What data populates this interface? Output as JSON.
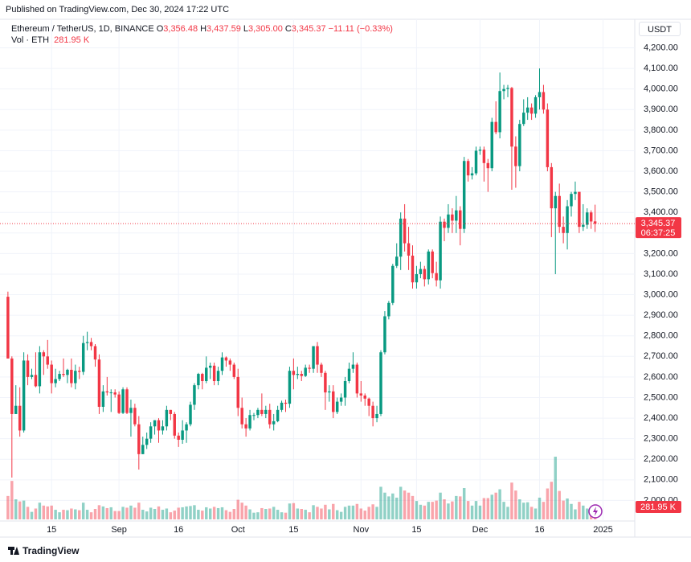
{
  "header": {
    "published": "Published on TradingView.com, Dec 30, 2024 17:22 UTC"
  },
  "legend": {
    "symbol": "Ethereum / TetherUS, 1D, BINANCE",
    "ohlc": [
      {
        "key": "O",
        "value": "3,356.48"
      },
      {
        "key": "H",
        "value": "3,437.59"
      },
      {
        "key": "L",
        "value": "3,305.00"
      },
      {
        "key": "C",
        "value": "3,345.37"
      }
    ],
    "change": "−11.11 (−0.33%)",
    "volume_name": "Vol · ETH",
    "volume_value": "281.95 K"
  },
  "footer": {
    "brand": "TradingView"
  },
  "chart_data": {
    "type": "candlestick",
    "unit": "USDT",
    "up_color": "#089981",
    "down_color": "#f23645",
    "last_price_label": "3,345.37",
    "countdown": "06:37:25",
    "last_volume_label": "281.95 K",
    "xlim": [
      "2024-08-02",
      "2025-01-09"
    ],
    "ylim": [
      1900,
      4245
    ],
    "grid": true,
    "yticks": [
      {
        "value": 2000,
        "label": "2,000.00"
      },
      {
        "value": 2100,
        "label": "2,100.00"
      },
      {
        "value": 2200,
        "label": "2,200.00"
      },
      {
        "value": 2300,
        "label": "2,300.00"
      },
      {
        "value": 2400,
        "label": "2,400.00"
      },
      {
        "value": 2500,
        "label": "2,500.00"
      },
      {
        "value": 2600,
        "label": "2,600.00"
      },
      {
        "value": 2700,
        "label": "2,700.00"
      },
      {
        "value": 2800,
        "label": "2,800.00"
      },
      {
        "value": 2900,
        "label": "2,900.00"
      },
      {
        "value": 3000,
        "label": "3,000.00"
      },
      {
        "value": 3100,
        "label": "3,100.00"
      },
      {
        "value": 3200,
        "label": "3,200.00"
      },
      {
        "value": 3300,
        "label": "3,300.00"
      },
      {
        "value": 3400,
        "label": "3,400.00"
      },
      {
        "value": 3500,
        "label": "3,500.00"
      },
      {
        "value": 3600,
        "label": "3,600.00"
      },
      {
        "value": 3700,
        "label": "3,700.00"
      },
      {
        "value": 3800,
        "label": "3,800.00"
      },
      {
        "value": 3900,
        "label": "3,900.00"
      },
      {
        "value": 4000,
        "label": "4,000.00"
      },
      {
        "value": 4100,
        "label": "4,100.00"
      },
      {
        "value": 4200,
        "label": "4,200.00"
      }
    ],
    "xticks": [
      {
        "value": "2024-08-15",
        "label": "15"
      },
      {
        "value": "2024-09-01",
        "label": "Sep"
      },
      {
        "value": "2024-09-16",
        "label": "16"
      },
      {
        "value": "2024-10-01",
        "label": "Oct"
      },
      {
        "value": "2024-10-15",
        "label": "15"
      },
      {
        "value": "2024-11-01",
        "label": "Nov"
      },
      {
        "value": "2024-11-15",
        "label": "15"
      },
      {
        "value": "2024-12-01",
        "label": "Dec"
      },
      {
        "value": "2024-12-16",
        "label": "16"
      },
      {
        "value": "2025-01-01",
        "label": "2025"
      }
    ],
    "x": [
      "2024-08-04",
      "2024-08-05",
      "2024-08-06",
      "2024-08-07",
      "2024-08-08",
      "2024-08-09",
      "2024-08-10",
      "2024-08-11",
      "2024-08-12",
      "2024-08-13",
      "2024-08-14",
      "2024-08-15",
      "2024-08-16",
      "2024-08-17",
      "2024-08-18",
      "2024-08-19",
      "2024-08-20",
      "2024-08-21",
      "2024-08-22",
      "2024-08-23",
      "2024-08-24",
      "2024-08-25",
      "2024-08-26",
      "2024-08-27",
      "2024-08-28",
      "2024-08-29",
      "2024-08-30",
      "2024-08-31",
      "2024-09-01",
      "2024-09-02",
      "2024-09-03",
      "2024-09-04",
      "2024-09-05",
      "2024-09-06",
      "2024-09-07",
      "2024-09-08",
      "2024-09-09",
      "2024-09-10",
      "2024-09-11",
      "2024-09-12",
      "2024-09-13",
      "2024-09-14",
      "2024-09-15",
      "2024-09-16",
      "2024-09-17",
      "2024-09-18",
      "2024-09-19",
      "2024-09-20",
      "2024-09-21",
      "2024-09-22",
      "2024-09-23",
      "2024-09-24",
      "2024-09-25",
      "2024-09-26",
      "2024-09-27",
      "2024-09-28",
      "2024-09-29",
      "2024-09-30",
      "2024-10-01",
      "2024-10-02",
      "2024-10-03",
      "2024-10-04",
      "2024-10-05",
      "2024-10-06",
      "2024-10-07",
      "2024-10-08",
      "2024-10-09",
      "2024-10-10",
      "2024-10-11",
      "2024-10-12",
      "2024-10-13",
      "2024-10-14",
      "2024-10-15",
      "2024-10-16",
      "2024-10-17",
      "2024-10-18",
      "2024-10-19",
      "2024-10-20",
      "2024-10-21",
      "2024-10-22",
      "2024-10-23",
      "2024-10-24",
      "2024-10-25",
      "2024-10-26",
      "2024-10-27",
      "2024-10-28",
      "2024-10-29",
      "2024-10-30",
      "2024-10-31",
      "2024-11-01",
      "2024-11-02",
      "2024-11-03",
      "2024-11-04",
      "2024-11-05",
      "2024-11-06",
      "2024-11-07",
      "2024-11-08",
      "2024-11-09",
      "2024-11-10",
      "2024-11-11",
      "2024-11-12",
      "2024-11-13",
      "2024-11-14",
      "2024-11-15",
      "2024-11-16",
      "2024-11-17",
      "2024-11-18",
      "2024-11-19",
      "2024-11-20",
      "2024-11-21",
      "2024-11-22",
      "2024-11-23",
      "2024-11-24",
      "2024-11-25",
      "2024-11-26",
      "2024-11-27",
      "2024-11-28",
      "2024-11-29",
      "2024-11-30",
      "2024-12-01",
      "2024-12-02",
      "2024-12-03",
      "2024-12-04",
      "2024-12-05",
      "2024-12-06",
      "2024-12-07",
      "2024-12-08",
      "2024-12-09",
      "2024-12-10",
      "2024-12-11",
      "2024-12-12",
      "2024-12-13",
      "2024-12-14",
      "2024-12-15",
      "2024-12-16",
      "2024-12-17",
      "2024-12-18",
      "2024-12-19",
      "2024-12-20",
      "2024-12-21",
      "2024-12-22",
      "2024-12-23",
      "2024-12-24",
      "2024-12-25",
      "2024-12-26",
      "2024-12-27",
      "2024-12-28",
      "2024-12-29",
      "2024-12-30"
    ],
    "open": [
      2990,
      2690,
      2420,
      2460,
      2340,
      2680,
      2600,
      2610,
      2555,
      2720,
      2700,
      2660,
      2570,
      2590,
      2615,
      2610,
      2635,
      2570,
      2630,
      2625,
      2765,
      2770,
      2750,
      2685,
      2455,
      2530,
      2525,
      2525,
      2515,
      2425,
      2540,
      2425,
      2450,
      2370,
      2225,
      2270,
      2300,
      2360,
      2390,
      2340,
      2360,
      2440,
      2420,
      2315,
      2295,
      2340,
      2370,
      2465,
      2560,
      2615,
      2580,
      2645,
      2655,
      2580,
      2630,
      2695,
      2680,
      2660,
      2600,
      2450,
      2370,
      2350,
      2415,
      2415,
      2440,
      2420,
      2440,
      2370,
      2385,
      2440,
      2475,
      2470,
      2630,
      2610,
      2615,
      2605,
      2645,
      2640,
      2750,
      2660,
      2620,
      2525,
      2530,
      2430,
      2480,
      2500,
      2580,
      2640,
      2660,
      2520,
      2510,
      2495,
      2460,
      2400,
      2420,
      2720,
      2895,
      2960,
      3140,
      3185,
      3370,
      3250,
      3190,
      3060,
      3100,
      3125,
      3075,
      3210,
      3105,
      3070,
      3355,
      3325,
      3390,
      3360,
      3410,
      3320,
      3650,
      3580,
      3590,
      3700,
      3705,
      3640,
      3615,
      3840,
      3790,
      3990,
      4000,
      4005,
      3720,
      3625,
      3830,
      3885,
      3910,
      3880,
      3960,
      3985,
      3900,
      3620,
      3420,
      3480,
      3330,
      3300,
      3430,
      3490,
      3500,
      3330,
      3340,
      3400,
      3356.48
    ],
    "high": [
      3015,
      2700,
      2560,
      2550,
      2720,
      2710,
      2640,
      2720,
      2750,
      2730,
      2780,
      2680,
      2640,
      2630,
      2690,
      2640,
      2690,
      2660,
      2650,
      2800,
      2820,
      2790,
      2760,
      2710,
      2560,
      2600,
      2540,
      2540,
      2530,
      2550,
      2550,
      2490,
      2470,
      2410,
      2310,
      2330,
      2380,
      2390,
      2400,
      2390,
      2460,
      2440,
      2430,
      2330,
      2390,
      2380,
      2480,
      2570,
      2620,
      2620,
      2700,
      2670,
      2670,
      2650,
      2720,
      2700,
      2690,
      2670,
      2640,
      2500,
      2400,
      2440,
      2425,
      2450,
      2520,
      2460,
      2470,
      2420,
      2460,
      2485,
      2490,
      2650,
      2690,
      2650,
      2630,
      2660,
      2660,
      2750,
      2770,
      2670,
      2630,
      2560,
      2560,
      2500,
      2520,
      2600,
      2670,
      2720,
      2670,
      2580,
      2520,
      2500,
      2480,
      2460,
      2730,
      2920,
      2970,
      3150,
      3250,
      3400,
      3440,
      3330,
      3240,
      3140,
      3160,
      3140,
      3220,
      3220,
      3160,
      3380,
      3370,
      3440,
      3420,
      3480,
      3430,
      3670,
      3660,
      3620,
      3720,
      3720,
      3720,
      3660,
      3860,
      3940,
      4080,
      4020,
      4020,
      4010,
      3770,
      3850,
      3950,
      3960,
      3930,
      3970,
      4100,
      4020,
      3930,
      3640,
      3500,
      3540,
      3380,
      3460,
      3500,
      3550,
      3500,
      3440,
      3420,
      3410,
      3437.59
    ],
    "low": [
      2690,
      2111,
      2420,
      2310,
      2330,
      2560,
      2590,
      2550,
      2520,
      2610,
      2640,
      2520,
      2550,
      2580,
      2600,
      2570,
      2550,
      2540,
      2590,
      2610,
      2730,
      2730,
      2650,
      2420,
      2430,
      2510,
      2430,
      2500,
      2420,
      2420,
      2420,
      2310,
      2360,
      2150,
      2225,
      2250,
      2280,
      2320,
      2280,
      2320,
      2340,
      2390,
      2300,
      2260,
      2275,
      2280,
      2360,
      2440,
      2540,
      2540,
      2570,
      2590,
      2560,
      2560,
      2610,
      2650,
      2630,
      2590,
      2410,
      2350,
      2310,
      2340,
      2390,
      2400,
      2410,
      2400,
      2350,
      2340,
      2380,
      2430,
      2430,
      2450,
      2540,
      2590,
      2580,
      2600,
      2620,
      2620,
      2620,
      2600,
      2440,
      2480,
      2400,
      2420,
      2460,
      2460,
      2570,
      2620,
      2500,
      2480,
      2460,
      2410,
      2360,
      2380,
      2410,
      2710,
      2880,
      2950,
      3130,
      3120,
      3210,
      3120,
      3030,
      3030,
      3080,
      3040,
      3050,
      3080,
      3040,
      3030,
      3260,
      3300,
      3300,
      3300,
      3240,
      3300,
      3550,
      3560,
      3580,
      3680,
      3550,
      3500,
      3600,
      3780,
      3760,
      3950,
      3960,
      3510,
      3520,
      3600,
      3820,
      3850,
      3850,
      3860,
      3900,
      3880,
      3600,
      3280,
      3100,
      3300,
      3250,
      3220,
      3380,
      3460,
      3300,
      3310,
      3320,
      3320,
      3305
    ],
    "close": [
      2690,
      2420,
      2460,
      2340,
      2680,
      2600,
      2610,
      2555,
      2720,
      2700,
      2660,
      2570,
      2590,
      2615,
      2610,
      2635,
      2570,
      2630,
      2625,
      2765,
      2770,
      2750,
      2685,
      2455,
      2530,
      2525,
      2525,
      2515,
      2425,
      2540,
      2425,
      2450,
      2370,
      2225,
      2270,
      2300,
      2360,
      2390,
      2340,
      2360,
      2440,
      2420,
      2315,
      2295,
      2340,
      2370,
      2465,
      2560,
      2615,
      2580,
      2645,
      2655,
      2580,
      2630,
      2695,
      2680,
      2660,
      2600,
      2450,
      2370,
      2350,
      2415,
      2415,
      2440,
      2420,
      2440,
      2370,
      2385,
      2440,
      2475,
      2470,
      2630,
      2610,
      2615,
      2605,
      2645,
      2640,
      2750,
      2660,
      2620,
      2525,
      2530,
      2430,
      2480,
      2500,
      2580,
      2640,
      2660,
      2520,
      2510,
      2495,
      2460,
      2400,
      2420,
      2720,
      2895,
      2960,
      3140,
      3185,
      3370,
      3250,
      3190,
      3060,
      3100,
      3125,
      3075,
      3210,
      3105,
      3070,
      3355,
      3325,
      3390,
      3360,
      3410,
      3320,
      3650,
      3580,
      3590,
      3700,
      3705,
      3640,
      3615,
      3840,
      3790,
      3990,
      4000,
      4005,
      3720,
      3625,
      3830,
      3885,
      3910,
      3880,
      3960,
      3985,
      3900,
      3620,
      3420,
      3480,
      3330,
      3300,
      3430,
      3490,
      3500,
      3330,
      3340,
      3400,
      3356,
      3345.37
    ],
    "volume": [
      560,
      920,
      480,
      430,
      450,
      300,
      180,
      260,
      400,
      330,
      310,
      330,
      230,
      170,
      230,
      220,
      260,
      240,
      220,
      400,
      230,
      170,
      250,
      340,
      310,
      270,
      290,
      200,
      200,
      300,
      280,
      330,
      280,
      400,
      230,
      190,
      280,
      250,
      310,
      230,
      260,
      170,
      210,
      280,
      290,
      310,
      320,
      340,
      230,
      210,
      290,
      260,
      300,
      270,
      290,
      220,
      180,
      250,
      470,
      400,
      330,
      240,
      160,
      170,
      270,
      250,
      260,
      300,
      230,
      170,
      160,
      380,
      390,
      260,
      250,
      230,
      170,
      340,
      300,
      260,
      350,
      240,
      370,
      220,
      180,
      300,
      330,
      330,
      370,
      260,
      210,
      300,
      360,
      300,
      780,
      640,
      550,
      620,
      520,
      780,
      690,
      640,
      560,
      440,
      350,
      330,
      420,
      420,
      450,
      640,
      480,
      380,
      430,
      560,
      550,
      750,
      440,
      330,
      440,
      330,
      510,
      510,
      590,
      640,
      720,
      420,
      300,
      880,
      690,
      480,
      400,
      410,
      300,
      260,
      520,
      420,
      740,
      900,
      1500,
      680,
      450,
      500,
      370,
      240,
      420,
      330,
      260,
      250,
      281.95
    ]
  }
}
